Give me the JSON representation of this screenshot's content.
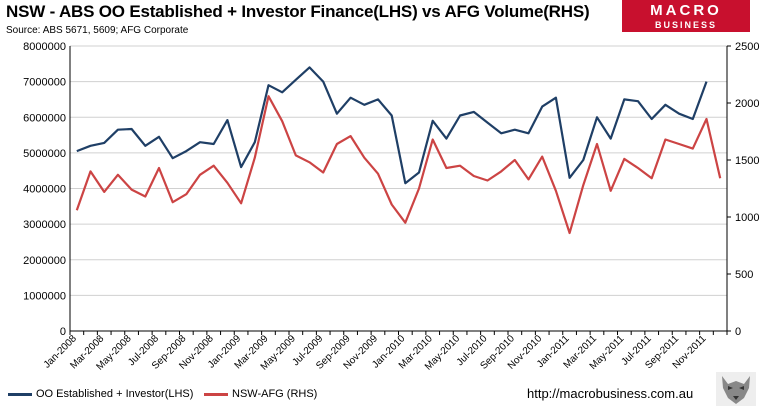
{
  "header": {
    "title": "NSW - ABS OO Established + Investor Finance(LHS) vs AFG Volume(RHS)",
    "subtitle": "Source: ABS 5671, 5609; AFG Corporate"
  },
  "logo": {
    "line1": "MACRO",
    "line2": "BUSINESS",
    "color": "#c8102e"
  },
  "footer": {
    "url": "http://macrobusiness.com.au"
  },
  "chart_data": {
    "type": "line",
    "title": "NSW - ABS OO Established + Investor Finance(LHS) vs AFG Volume(RHS)",
    "subtitle": "Source: ABS 5671, 5609; AFG Corporate",
    "x": [
      "Jan-2008",
      "Feb-2008",
      "Mar-2008",
      "Apr-2008",
      "May-2008",
      "Jun-2008",
      "Jul-2008",
      "Aug-2008",
      "Sep-2008",
      "Oct-2008",
      "Nov-2008",
      "Dec-2008",
      "Jan-2009",
      "Feb-2009",
      "Mar-2009",
      "Apr-2009",
      "May-2009",
      "Jun-2009",
      "Jul-2009",
      "Aug-2009",
      "Sep-2009",
      "Oct-2009",
      "Nov-2009",
      "Dec-2009",
      "Jan-2010",
      "Feb-2010",
      "Mar-2010",
      "Apr-2010",
      "May-2010",
      "Jun-2010",
      "Jul-2010",
      "Aug-2010",
      "Sep-2010",
      "Oct-2010",
      "Nov-2010",
      "Dec-2010",
      "Jan-2011",
      "Feb-2011",
      "Mar-2011",
      "Apr-2011",
      "May-2011",
      "Jun-2011",
      "Jul-2011",
      "Aug-2011",
      "Sep-2011",
      "Oct-2011",
      "Nov-2011",
      "Dec-2011"
    ],
    "x_tick_labels": [
      "Jan-2008",
      "Mar-2008",
      "May-2008",
      "Jul-2008",
      "Sep-2008",
      "Nov-2008",
      "Jan-2009",
      "Mar-2009",
      "May-2009",
      "Jul-2009",
      "Sep-2009",
      "Nov-2009",
      "Jan-2010",
      "Mar-2010",
      "May-2010",
      "Jul-2010",
      "Sep-2010",
      "Nov-2010",
      "Jan-2011",
      "Mar-2011",
      "May-2011",
      "Jul-2011",
      "Sep-2011",
      "Nov-2011"
    ],
    "y_left": {
      "range": [
        0,
        8000000
      ],
      "ticks": [
        "0",
        "1000000",
        "2000000",
        "3000000",
        "4000000",
        "5000000",
        "6000000",
        "7000000",
        "8000000"
      ]
    },
    "y_right": {
      "range": [
        0,
        2500
      ],
      "ticks": [
        "0",
        "500",
        "1000",
        "1500",
        "2000",
        "2500"
      ]
    },
    "grid": true,
    "legend_position": "bottom-left",
    "series": [
      {
        "name": "OO Established + Investor(LHS)",
        "axis": "left",
        "color": "#1f3f66",
        "values": [
          5050000,
          5200000,
          5280000,
          5650000,
          5670000,
          5200000,
          5450000,
          4850000,
          5050000,
          5300000,
          5250000,
          5920000,
          4600000,
          5300000,
          6900000,
          6700000,
          7050000,
          7400000,
          7000000,
          6100000,
          6550000,
          6350000,
          6500000,
          6050000,
          4150000,
          4450000,
          5900000,
          5400000,
          6050000,
          6150000,
          5850000,
          5550000,
          5650000,
          5550000,
          6300000,
          6550000,
          4300000,
          4800000,
          6000000,
          5400000,
          6500000,
          6450000,
          5950000,
          6350000,
          6100000,
          5950000,
          7000000,
          null
        ]
      },
      {
        "name": "NSW-AFG (RHS)",
        "axis": "right",
        "color": "#cc4444",
        "values": [
          1060,
          1400,
          1220,
          1370,
          1240,
          1180,
          1430,
          1130,
          1200,
          1370,
          1450,
          1300,
          1120,
          1520,
          2060,
          1840,
          1540,
          1480,
          1390,
          1640,
          1710,
          1520,
          1380,
          1110,
          950,
          1250,
          1680,
          1430,
          1450,
          1360,
          1320,
          1400,
          1500,
          1330,
          1530,
          1230,
          860,
          1280,
          1640,
          1230,
          1510,
          1430,
          1340,
          1680,
          1640,
          1600,
          1860,
          1340
        ]
      }
    ]
  }
}
